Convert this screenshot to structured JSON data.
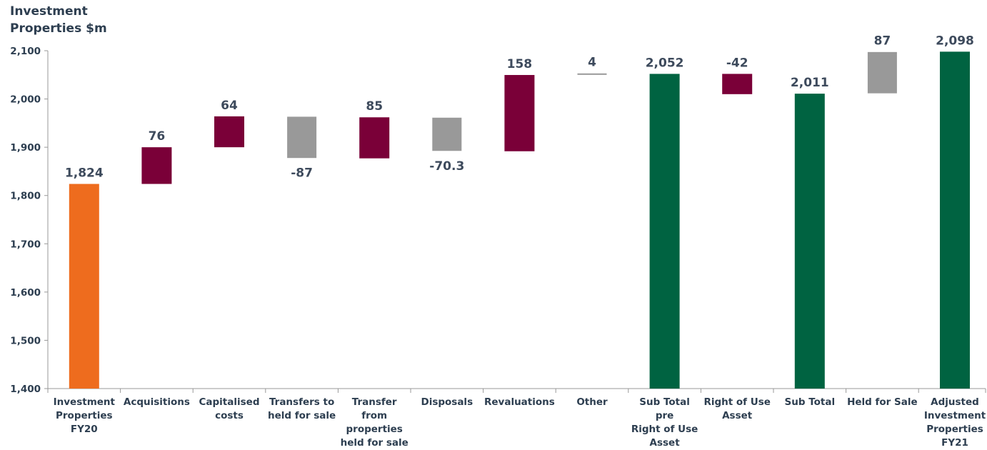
{
  "chart_data": {
    "type": "waterfall",
    "title": "Investment\nProperties  $m",
    "categories": [
      "Investment\nProperties\nFY20",
      "Acquisitions",
      "Capitalised\ncosts",
      "Transfers to\nheld for sale",
      "Transfer from\nproperties\nheld for sale",
      "Disposals",
      "Revaluations",
      "Other",
      "Sub Total pre\nRight of Use\nAsset",
      "Right of Use\nAsset",
      "Sub Total",
      "Held for Sale",
      "Adjusted\nInvestment\nProperties\nFY21"
    ],
    "values": [
      1824,
      76,
      64,
      -87,
      85,
      -70.3,
      158,
      4,
      2052,
      -42,
      2011,
      87,
      2098
    ],
    "value_labels": [
      "1,824",
      "76",
      "64",
      "-87",
      "85",
      "-70.3",
      "158",
      "4",
      "2,052",
      "-42",
      "2,011",
      "87",
      "2,098"
    ],
    "is_total": [
      true,
      false,
      false,
      false,
      false,
      false,
      false,
      false,
      true,
      false,
      true,
      false,
      true
    ],
    "colors": [
      "#ee6c1e",
      "#7a0038",
      "#7a0038",
      "#999999",
      "#7a0038",
      "#999999",
      "#7a0038",
      "#999999",
      "#006341",
      "#7a0038",
      "#006341",
      "#999999",
      "#006341"
    ],
    "ylim": [
      1400,
      2100
    ],
    "yticks": [
      {
        "value": 1400,
        "label": "1,400"
      },
      {
        "value": 1500,
        "label": "1,500"
      },
      {
        "value": 1600,
        "label": "1,600"
      },
      {
        "value": 1700,
        "label": "1,700"
      },
      {
        "value": 1800,
        "label": "1,800"
      },
      {
        "value": 1900,
        "label": "1,900"
      },
      {
        "value": 2000,
        "label": "2,000"
      },
      {
        "value": 2100,
        "label": "2,100"
      }
    ],
    "grid": false
  }
}
